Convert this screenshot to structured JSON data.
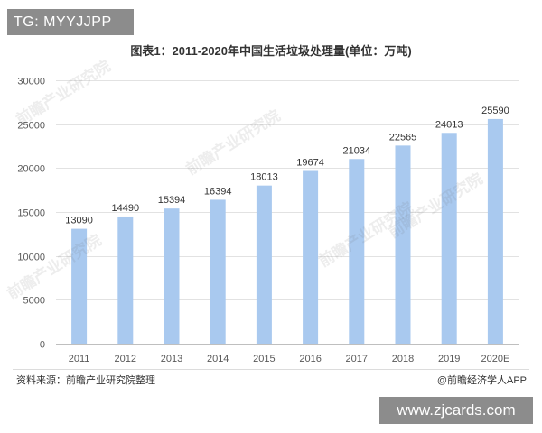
{
  "overlays": {
    "top_label": "TG: MYYJJPP",
    "bottom_label": "www.zjcards.com"
  },
  "footer": {
    "source": "资料来源：前瞻产业研究院整理",
    "credit": "@前瞻经济学人APP"
  },
  "watermark": {
    "text": "前瞻产业研究院"
  },
  "colors": {
    "bar": "#a9c9ef",
    "grid": "#e2e2e2",
    "axis": "#bfbfbf",
    "overlay_bg": "#8c8c8c",
    "text": "#333333"
  },
  "chart_data": {
    "type": "bar",
    "title": "图表1：2011-2020年中国生活垃圾处理量(单位：万吨)",
    "categories": [
      "2011",
      "2012",
      "2013",
      "2014",
      "2015",
      "2016",
      "2017",
      "2018",
      "2019",
      "2020E"
    ],
    "values": [
      13090,
      14490,
      15394,
      16394,
      18013,
      19674,
      21034,
      22565,
      24013,
      25590
    ],
    "ylim": [
      0,
      30000
    ],
    "yticks": [
      0,
      5000,
      10000,
      15000,
      20000,
      25000,
      30000
    ],
    "grid": true,
    "data_labels": true,
    "legend": "none"
  }
}
